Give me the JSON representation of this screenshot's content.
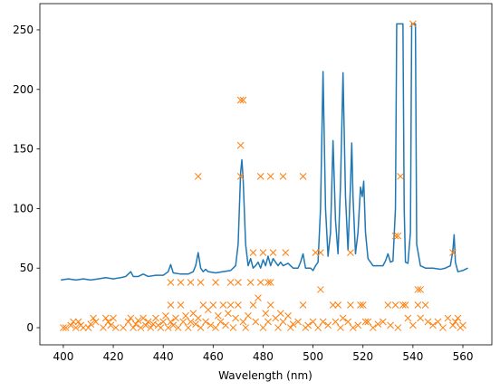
{
  "chart_data": {
    "type": "line",
    "xlabel": "Wavelength (nm)",
    "xlim": [
      390.6,
      571.6
    ],
    "ylim": [
      -14.4,
      272
    ],
    "xticks": [
      400,
      420,
      440,
      460,
      480,
      500,
      520,
      540,
      560
    ],
    "yticks": [
      0,
      50,
      100,
      150,
      200,
      250
    ],
    "grid": false,
    "series": [
      {
        "type": "line",
        "color": "#1f77b4",
        "x": [
          399,
          402,
          405,
          408,
          411,
          414,
          417,
          420,
          423,
          425,
          427,
          428,
          430,
          432,
          434,
          437,
          440,
          442,
          443,
          444,
          447,
          450,
          452,
          453,
          454,
          455,
          456,
          457,
          458,
          461,
          464,
          467,
          469,
          470,
          471,
          471.5,
          472,
          473,
          474,
          475,
          476,
          477,
          478,
          479,
          480,
          481,
          482,
          483,
          484,
          485,
          486,
          487,
          488,
          490,
          492,
          494,
          495,
          496,
          497,
          499,
          500,
          501,
          502,
          503,
          504,
          505,
          506,
          507,
          508,
          509,
          510,
          511,
          512,
          513,
          514,
          515,
          515.5,
          516,
          517,
          518,
          519,
          519.7,
          520.3,
          521,
          522,
          524,
          526,
          528,
          529,
          530,
          531,
          532,
          533,
          533.5,
          536,
          536.5,
          537,
          538,
          539,
          539.5,
          541,
          541.5,
          543,
          545,
          548,
          551,
          553,
          555,
          556,
          556.5,
          557,
          558,
          560,
          562
        ],
        "values": [
          40,
          41,
          40,
          41,
          40,
          41,
          42,
          41,
          42,
          43,
          47,
          43,
          43,
          45,
          43,
          44,
          44,
          47,
          53,
          46,
          45,
          45,
          47,
          52,
          63,
          50,
          47,
          49,
          47,
          46,
          47,
          48,
          52,
          70,
          130,
          141,
          125,
          70,
          52,
          58,
          50,
          52,
          55,
          50,
          57,
          52,
          60,
          52,
          58,
          55,
          52,
          55,
          52,
          54,
          50,
          50,
          55,
          62,
          50,
          50,
          48,
          52,
          55,
          100,
          215,
          100,
          60,
          80,
          157,
          90,
          62,
          120,
          214,
          110,
          65,
          120,
          155,
          110,
          62,
          80,
          118,
          110,
          123,
          80,
          58,
          52,
          52,
          52,
          56,
          62,
          55,
          56,
          100,
          255,
          255,
          100,
          55,
          54,
          80,
          255,
          255,
          70,
          52,
          50,
          50,
          49,
          50,
          52,
          65,
          78,
          55,
          47,
          48,
          50
        ]
      },
      {
        "type": "scatter",
        "marker": "x",
        "color": "#ff7f0e",
        "x": [
          454,
          471,
          472,
          471,
          471,
          476,
          479,
          480,
          483,
          484,
          488,
          489,
          496,
          501,
          503,
          503,
          515,
          533,
          534,
          535,
          540,
          542,
          543,
          556,
          443,
          443,
          447,
          451,
          455,
          461,
          467,
          470,
          475,
          479,
          482,
          483,
          400,
          401,
          403,
          404,
          405,
          406,
          407,
          408,
          410,
          411,
          412,
          413,
          416,
          417,
          418,
          419,
          420,
          421,
          424,
          426,
          427,
          428,
          429,
          430,
          431,
          432,
          433,
          434,
          435,
          436,
          437,
          438,
          439,
          440,
          441,
          442,
          443,
          444,
          445,
          446,
          447,
          448,
          449,
          450,
          451,
          452,
          453,
          454,
          455,
          456,
          457,
          458,
          459,
          460,
          461,
          462,
          463,
          464,
          465,
          466,
          467,
          468,
          469,
          470,
          472,
          473,
          474,
          476,
          477,
          478,
          480,
          481,
          482,
          483,
          485,
          486,
          487,
          488,
          490,
          491,
          492,
          494,
          496,
          497,
          498,
          500,
          502,
          504,
          506,
          508,
          509,
          510,
          511,
          512,
          514,
          515,
          516,
          518,
          519,
          520,
          521,
          522,
          524,
          526,
          528,
          530,
          531,
          533,
          534,
          536,
          537,
          538,
          540,
          542,
          543,
          545,
          546,
          548,
          550,
          552,
          554,
          556,
          557,
          558,
          559,
          560
        ],
        "values": [
          127,
          191,
          191,
          153,
          127,
          63,
          127,
          63,
          127,
          63,
          127,
          63,
          127,
          63,
          63,
          32,
          63,
          77,
          77,
          127,
          255,
          32,
          32,
          63,
          38,
          19,
          38,
          38,
          38,
          38,
          38,
          38,
          38,
          38,
          38,
          38,
          0,
          0,
          2,
          5,
          0,
          5,
          2,
          0,
          0,
          3,
          8,
          5,
          0,
          8,
          5,
          2,
          8,
          0,
          0,
          5,
          8,
          0,
          3,
          6,
          0,
          8,
          2,
          5,
          0,
          3,
          8,
          2,
          0,
          5,
          10,
          0,
          5,
          2,
          8,
          0,
          19,
          5,
          10,
          0,
          5,
          12,
          3,
          8,
          0,
          19,
          5,
          15,
          2,
          19,
          0,
          10,
          5,
          19,
          2,
          12,
          19,
          0,
          8,
          19,
          5,
          0,
          10,
          19,
          5,
          25,
          0,
          12,
          5,
          19,
          8,
          0,
          12,
          5,
          10,
          0,
          3,
          5,
          19,
          0,
          2,
          5,
          0,
          5,
          2,
          19,
          5,
          19,
          0,
          8,
          5,
          19,
          0,
          2,
          19,
          19,
          5,
          5,
          0,
          3,
          5,
          19,
          2,
          19,
          0,
          19,
          19,
          8,
          2,
          19,
          8,
          19,
          5,
          2,
          5,
          0,
          8,
          2,
          5,
          8,
          0,
          2
        ]
      }
    ]
  }
}
